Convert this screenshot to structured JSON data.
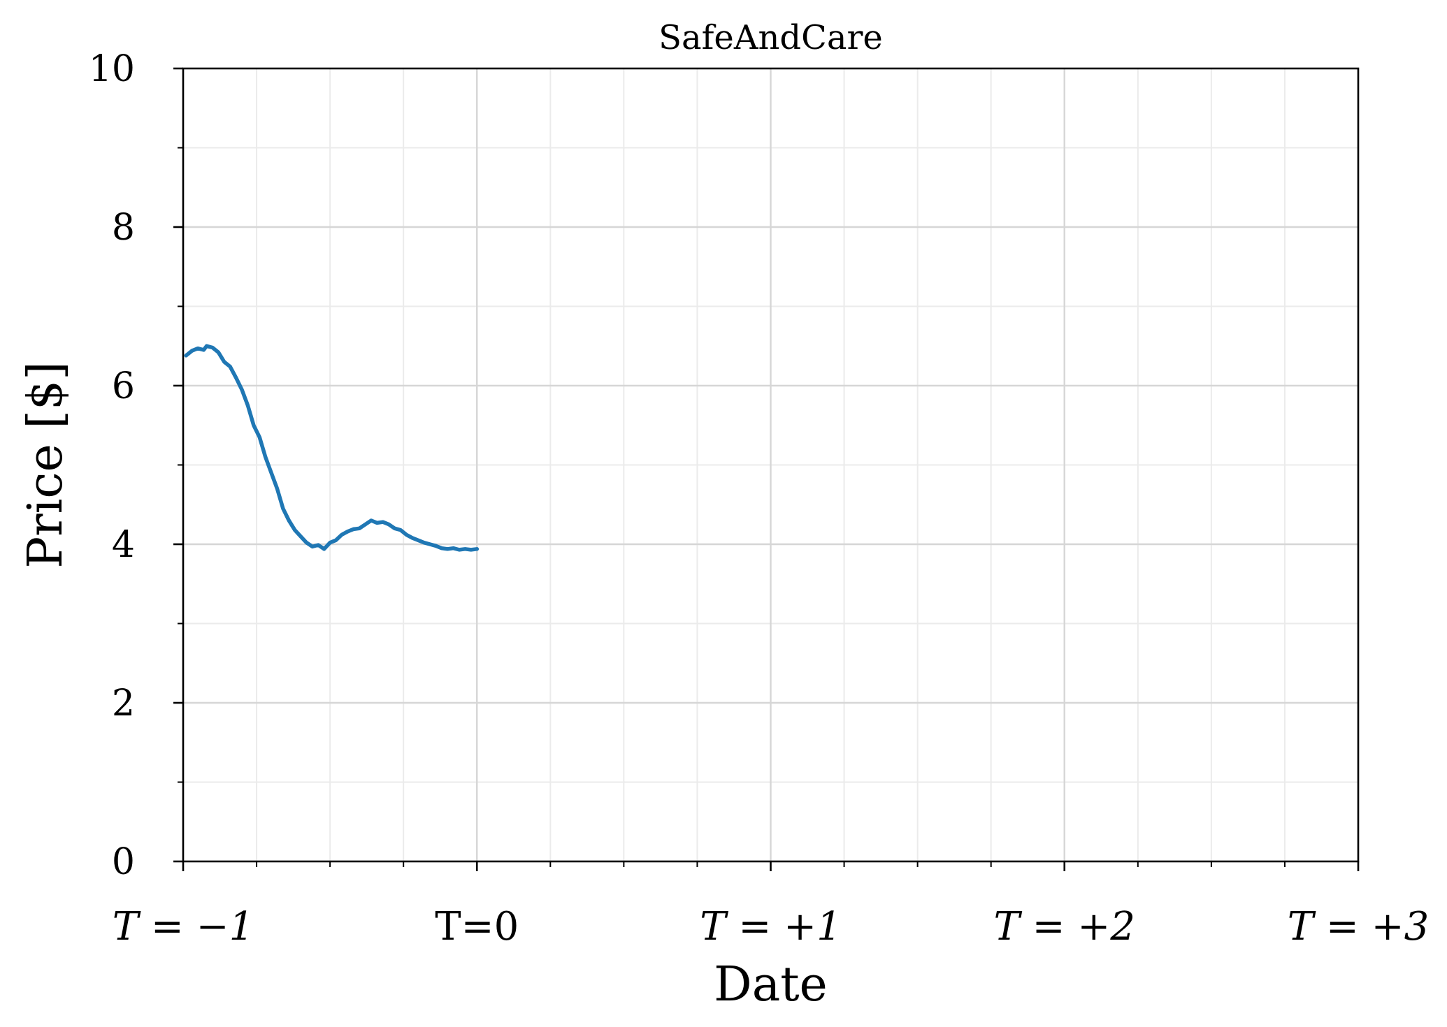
{
  "chart_data": {
    "type": "line",
    "title": "SafeAndCare",
    "xlabel": "Date",
    "ylabel": "Price [$]",
    "xlim": [
      -1,
      3
    ],
    "ylim": [
      0,
      10
    ],
    "grid": true,
    "x_ticks": [
      {
        "value": -1,
        "label": "T = −1",
        "italic": true
      },
      {
        "value": 0,
        "label": "T=0",
        "italic": false
      },
      {
        "value": 1,
        "label": "T = +1",
        "italic": true
      },
      {
        "value": 2,
        "label": "T = +2",
        "italic": true
      },
      {
        "value": 3,
        "label": "T = +3",
        "italic": true
      }
    ],
    "y_ticks": [
      0,
      2,
      4,
      6,
      8,
      10
    ],
    "color": "#1f77b4",
    "series": [
      {
        "x": [
          -0.99,
          -0.97,
          -0.95,
          -0.93,
          -0.92,
          -0.9,
          -0.88,
          -0.86,
          -0.84,
          -0.82,
          -0.8,
          -0.78,
          -0.76,
          -0.74,
          -0.72,
          -0.7,
          -0.68,
          -0.66,
          -0.64,
          -0.62,
          -0.6,
          -0.58,
          -0.56,
          -0.54,
          -0.52,
          -0.5,
          -0.48,
          -0.46,
          -0.44,
          -0.42,
          -0.4,
          -0.38,
          -0.36,
          -0.34,
          -0.32,
          -0.3,
          -0.28,
          -0.26,
          -0.24,
          -0.22,
          -0.2,
          -0.18,
          -0.16,
          -0.14,
          -0.12,
          -0.1,
          -0.08,
          -0.06,
          -0.04,
          -0.02,
          0.0
        ],
        "y": [
          6.38,
          6.44,
          6.47,
          6.45,
          6.5,
          6.48,
          6.42,
          6.3,
          6.24,
          6.1,
          5.95,
          5.75,
          5.5,
          5.35,
          5.1,
          4.9,
          4.7,
          4.45,
          4.3,
          4.18,
          4.1,
          4.02,
          3.97,
          3.99,
          3.94,
          4.02,
          4.05,
          4.12,
          4.16,
          4.19,
          4.2,
          4.25,
          4.3,
          4.27,
          4.28,
          4.25,
          4.2,
          4.18,
          4.12,
          4.08,
          4.05,
          4.02,
          4.0,
          3.98,
          3.95,
          3.94,
          3.95,
          3.93,
          3.94,
          3.93,
          3.94
        ]
      }
    ]
  }
}
